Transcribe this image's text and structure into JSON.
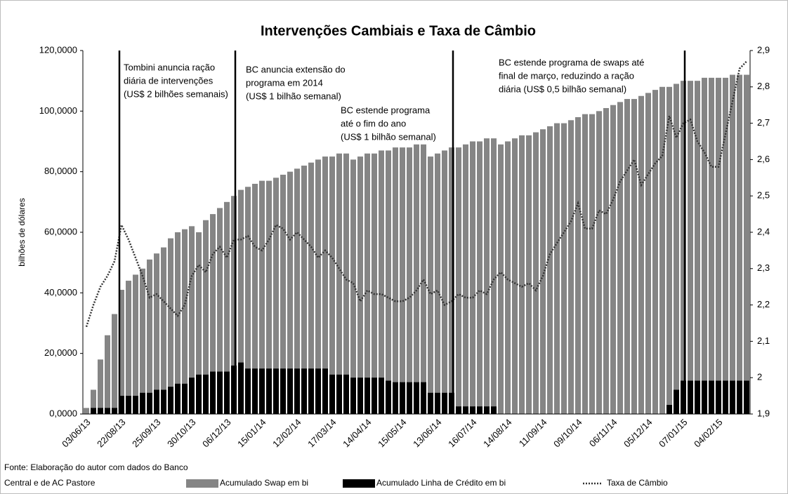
{
  "chart_data": {
    "type": "bar",
    "title": "Intervenções  Cambiais e Taxa de Câmbio",
    "y_label": "bilhões de dólares",
    "source": [
      "Fonte: Elaboração do autor com dados do Banco",
      "Central e de AC Pastore"
    ],
    "annotations": [
      [
        "Tombini anuncia ração",
        "diária de intervenções",
        "(US$ 2 bilhões semanais)"
      ],
      [
        "BC anuncia extensão do",
        "programa em 2014",
        "(US$ 1 bilhão semanal)"
      ],
      [
        "BC estende programa",
        "até o fim do ano",
        "(US$ 1 bilhão semanal)"
      ],
      [
        "BC  estende programa de swaps até",
        "final de março, reduzindo a ração",
        "diária (US$ 0,5 bilhão semanal)"
      ]
    ],
    "categories": [
      "03/06/13",
      null,
      null,
      null,
      null,
      "22/08/13",
      null,
      null,
      null,
      null,
      "25/09/13",
      null,
      null,
      null,
      null,
      "30/10/13",
      null,
      null,
      null,
      null,
      "06/12/13",
      null,
      null,
      null,
      null,
      "15/01/14",
      null,
      null,
      null,
      null,
      "12/02/14",
      null,
      null,
      null,
      null,
      "17/03/14",
      null,
      null,
      null,
      null,
      "14/04/14",
      null,
      null,
      null,
      null,
      "15/05/14",
      null,
      null,
      null,
      null,
      "13/06/14",
      null,
      null,
      null,
      null,
      "16/07/14",
      null,
      null,
      null,
      null,
      "14/08/14",
      null,
      null,
      null,
      null,
      "11/09/14",
      null,
      null,
      null,
      null,
      "09/10/14",
      null,
      null,
      null,
      null,
      "06/11/14",
      null,
      null,
      null,
      null,
      "05/12/14",
      null,
      null,
      null,
      null,
      "07/01/15",
      null,
      null,
      null,
      null,
      "04/02/15",
      null,
      null,
      null,
      null
    ],
    "series": [
      {
        "name": "Acumulado Swap em bi",
        "color": "#858585",
        "type": "bar",
        "values": [
          2,
          8,
          18,
          26,
          33,
          41,
          44,
          46,
          48,
          51,
          53,
          55,
          58,
          60,
          61,
          62,
          60,
          64,
          66,
          68,
          70,
          72,
          74,
          75,
          76,
          77,
          77,
          78,
          79,
          80,
          81,
          82,
          83,
          84,
          85,
          85,
          86,
          86,
          84,
          85,
          86,
          86,
          87,
          87,
          88,
          88,
          88,
          89,
          89,
          85,
          86,
          87,
          88,
          88,
          89,
          90,
          90,
          91,
          91,
          89,
          90,
          91,
          92,
          92,
          93,
          94,
          95,
          96,
          96,
          97,
          98,
          99,
          99,
          100,
          101,
          102,
          103,
          104,
          104,
          105,
          106,
          107,
          108,
          108,
          109,
          110,
          110,
          110,
          111,
          111,
          111,
          111,
          112,
          112,
          112
        ]
      },
      {
        "name": "Acumulado Linha de Crédito em bi",
        "color": "#000000",
        "type": "bar",
        "values": [
          0,
          2,
          2,
          2,
          2,
          6,
          6,
          6,
          7,
          7,
          8,
          8,
          9,
          10,
          10,
          12,
          13,
          13,
          14,
          14,
          14,
          16,
          17,
          15,
          15,
          15,
          15,
          15,
          15,
          15,
          15,
          15,
          15,
          15,
          15,
          13,
          13,
          13,
          12,
          12,
          12,
          12,
          12,
          11,
          10.5,
          10.5,
          10.5,
          10.5,
          10.5,
          7,
          7,
          7,
          7,
          2.5,
          2.5,
          2.5,
          2.5,
          2.5,
          2.5,
          0,
          0,
          0,
          0,
          0,
          0,
          0,
          0,
          0,
          0,
          0,
          0,
          0,
          0,
          0,
          0,
          0,
          0,
          0,
          0,
          0,
          0,
          0,
          0,
          3,
          8,
          11,
          11,
          11,
          11,
          11,
          11,
          11,
          11,
          11,
          11
        ]
      },
      {
        "name": "Taxa de Câmbio",
        "color": "#333333",
        "type": "line",
        "axis": "y2",
        "values": [
          2.14,
          2.2,
          2.25,
          2.28,
          2.32,
          2.42,
          2.38,
          2.33,
          2.28,
          2.22,
          2.23,
          2.21,
          2.19,
          2.17,
          2.2,
          2.28,
          2.31,
          2.29,
          2.34,
          2.36,
          2.33,
          2.38,
          2.38,
          2.39,
          2.36,
          2.35,
          2.38,
          2.42,
          2.41,
          2.38,
          2.4,
          2.38,
          2.36,
          2.33,
          2.35,
          2.33,
          2.3,
          2.27,
          2.26,
          2.21,
          2.24,
          2.23,
          2.23,
          2.22,
          2.21,
          2.21,
          2.22,
          2.24,
          2.27,
          2.23,
          2.24,
          2.2,
          2.21,
          2.23,
          2.22,
          2.22,
          2.24,
          2.23,
          2.27,
          2.29,
          2.27,
          2.26,
          2.25,
          2.26,
          2.24,
          2.28,
          2.34,
          2.37,
          2.4,
          2.43,
          2.48,
          2.41,
          2.41,
          2.46,
          2.45,
          2.49,
          2.54,
          2.57,
          2.6,
          2.53,
          2.56,
          2.59,
          2.61,
          2.72,
          2.66,
          2.7,
          2.71,
          2.65,
          2.62,
          2.58,
          2.58,
          2.67,
          2.76,
          2.85,
          2.87
        ]
      }
    ],
    "ylim": [
      0,
      120
    ],
    "yticks": [
      {
        "value": 0,
        "label": "0,0000"
      },
      {
        "value": 20,
        "label": "20,0000"
      },
      {
        "value": 40,
        "label": "40,0000"
      },
      {
        "value": 60,
        "label": "60,0000"
      },
      {
        "value": 80,
        "label": "80,0000"
      },
      {
        "value": 100,
        "label": "100,0000"
      },
      {
        "value": 120,
        "label": "120,0000"
      }
    ],
    "y2lim": [
      1.9,
      2.9
    ],
    "y2ticks": [
      {
        "value": 1.9,
        "label": "1,9"
      },
      2,
      {
        "value": 2.1,
        "label": "2,1"
      },
      {
        "value": 2.2,
        "label": "2,2"
      },
      {
        "value": 2.3,
        "label": "2,3"
      },
      {
        "value": 2.4,
        "label": "2,4"
      },
      {
        "value": 2.5,
        "label": "2,5"
      },
      {
        "value": 2.6,
        "label": "2,6"
      },
      {
        "value": 2.7,
        "label": "2,7"
      },
      {
        "value": 2.8,
        "label": "2,8"
      },
      {
        "value": 2.9,
        "label": "2,9"
      }
    ],
    "grid": false
  }
}
